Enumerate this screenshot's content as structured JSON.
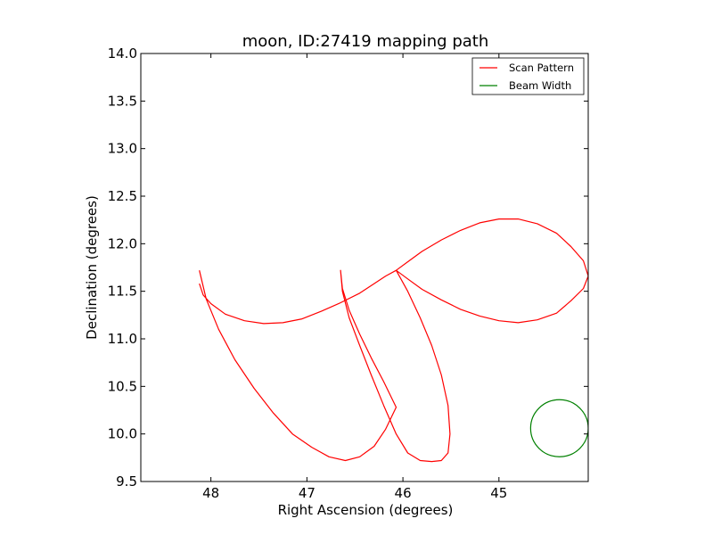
{
  "chart_data": {
    "type": "line",
    "title": "moon, ID:27419 mapping path",
    "xlabel": "Right Ascension (degrees)",
    "ylabel": "Declination (degrees)",
    "xlim": [
      48.73,
      44.07
    ],
    "ylim": [
      9.5,
      14.0
    ],
    "x_reversed": true,
    "xticks": [
      48,
      47,
      46,
      45
    ],
    "xtick_labels": [
      "48",
      "47",
      "46",
      "45"
    ],
    "yticks": [
      9.5,
      10.0,
      10.5,
      11.0,
      11.5,
      12.0,
      12.5,
      13.0,
      13.5,
      14.0
    ],
    "ytick_labels": [
      "9.5",
      "10.0",
      "10.5",
      "11.0",
      "11.5",
      "12.0",
      "12.5",
      "13.0",
      "13.5",
      "14.0"
    ],
    "grid": false,
    "legend_position": "top-right",
    "series": [
      {
        "name": "Scan Pattern",
        "color": "#ff0000",
        "center": [
          46.07,
          11.72
        ],
        "curve": "four-petal rose path through center, petal reach 2.0 deg in RA and Dec",
        "x": [
          48.12,
          48.08,
          48.0,
          47.85,
          47.65,
          47.45,
          47.25,
          47.05,
          46.85,
          46.65,
          46.45,
          46.3,
          46.18,
          46.07,
          45.95,
          45.8,
          45.6,
          45.4,
          45.2,
          45.0,
          44.8,
          44.6,
          44.4,
          44.25,
          44.12,
          44.07,
          44.12,
          44.25,
          44.4,
          44.6,
          44.8,
          45.0,
          45.2,
          45.4,
          45.6,
          45.8,
          45.95,
          46.07,
          45.95,
          45.82,
          45.7,
          45.6,
          45.53,
          45.51,
          45.53,
          45.6,
          45.7,
          45.82,
          45.95,
          46.07,
          46.2,
          46.33,
          46.45,
          46.56,
          46.63,
          46.65,
          46.63,
          46.56,
          46.45,
          46.33,
          46.2,
          46.07,
          46.18,
          46.3,
          46.45,
          46.6,
          46.77,
          46.95,
          47.15,
          47.35,
          47.55,
          47.75,
          47.92,
          48.05,
          48.12
        ],
        "y": [
          11.58,
          11.46,
          11.37,
          11.26,
          11.19,
          11.16,
          11.17,
          11.21,
          11.29,
          11.38,
          11.48,
          11.58,
          11.66,
          11.72,
          11.63,
          11.52,
          11.41,
          11.31,
          11.24,
          11.19,
          11.17,
          11.2,
          11.27,
          11.4,
          11.53,
          11.66,
          11.82,
          11.97,
          12.11,
          12.21,
          12.26,
          12.26,
          12.22,
          12.14,
          12.04,
          11.92,
          11.81,
          11.72,
          11.5,
          11.22,
          10.93,
          10.62,
          10.3,
          10.0,
          9.8,
          9.72,
          9.71,
          9.72,
          9.8,
          10.0,
          10.3,
          10.62,
          10.93,
          11.22,
          11.5,
          11.72,
          11.53,
          11.3,
          11.05,
          10.8,
          10.55,
          10.28,
          10.05,
          9.87,
          9.76,
          9.72,
          9.76,
          9.86,
          10.0,
          10.22,
          10.48,
          10.78,
          11.1,
          11.42,
          11.72
        ]
      },
      {
        "name": "Beam Width",
        "color": "#008000",
        "shape": "circle",
        "center": [
          44.37,
          10.06
        ],
        "radius_deg": 0.3
      }
    ]
  }
}
